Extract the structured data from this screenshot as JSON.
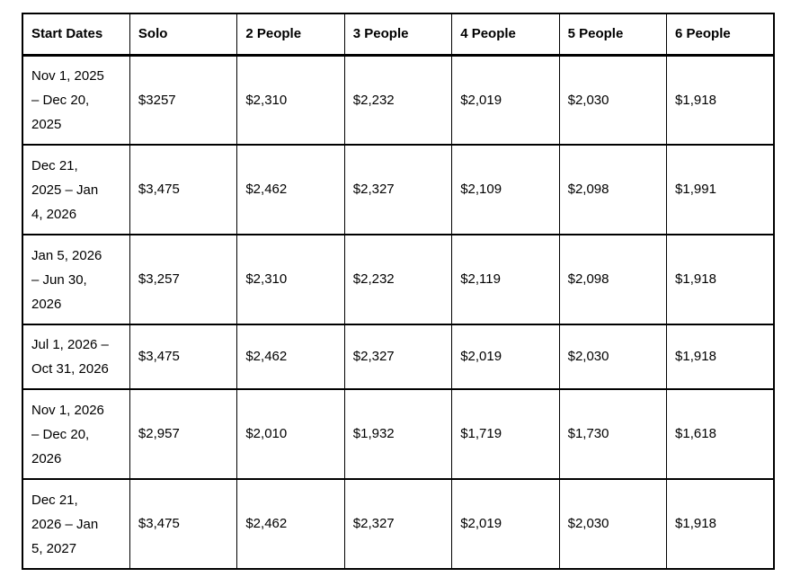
{
  "chart_data": {
    "type": "table",
    "columns": [
      "Start Dates",
      "Solo",
      "2 People",
      "3 People",
      "4 People",
      "5 People",
      "6 People"
    ],
    "rows": [
      {
        "cells": [
          "Nov 1, 2025\n– Dec 20,\n2025",
          "$3257",
          "$2,310",
          "$2,232",
          "$2,019",
          "$2,030",
          "$1,918"
        ]
      },
      {
        "cells": [
          "Dec 21,\n2025 – Jan\n4, 2026",
          "$3,475",
          "$2,462",
          "$2,327",
          "$2,109",
          "$2,098",
          "$1,991"
        ]
      },
      {
        "cells": [
          "Jan 5, 2026\n– Jun 30,\n2026",
          "$3,257",
          "$2,310",
          "$2,232",
          "$2,119",
          "$2,098",
          "$1,918"
        ]
      },
      {
        "cells": [
          "Jul 1, 2026 –\nOct 31, 2026",
          "$3,475",
          "$2,462",
          "$2,327",
          "$2,019",
          "$2,030",
          "$1,918"
        ]
      },
      {
        "cells": [
          "Nov 1, 2026\n– Dec 20,\n2026",
          "$2,957",
          "$2,010",
          "$1,932",
          "$1,719",
          "$1,730",
          "$1,618"
        ]
      },
      {
        "cells": [
          "Dec 21,\n2026 – Jan\n5, 2027",
          "$3,475",
          "$2,462",
          "$2,327",
          "$2,019",
          "$2,030",
          "$1,918"
        ]
      }
    ],
    "title": "",
    "layout": {
      "grid": "all-borders",
      "header_row": true
    }
  },
  "colors": {
    "border": "#000000",
    "text": "#000000",
    "background": "#ffffff"
  }
}
